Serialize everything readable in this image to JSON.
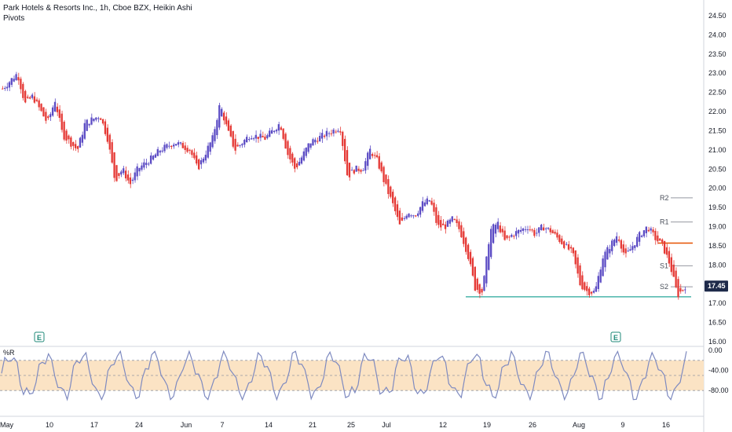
{
  "header": {
    "title": "Park Hotels & Resorts Inc., 1h, Cboe BZX, Heikin Ashi",
    "pivots_label": "Pivots",
    "indicator_label": "%R"
  },
  "price_badge": "17.45",
  "earnings_marker": "E",
  "colors": {
    "up": "#5b4bc4",
    "down": "#e53935",
    "pivot_line": "#9598a1",
    "support_line": "#26a69a",
    "resistance_line": "#e65100",
    "wr_line": "#7e8ac0",
    "wr_band": "#fbe3c4",
    "badge": "#1e2a4a"
  },
  "chart_data": [
    {
      "type": "candlestick",
      "title": "Park Hotels & Resorts Inc., 1h, Cboe BZX, Heikin Ashi",
      "y_ticks": [
        "24.50",
        "24.00",
        "23.50",
        "23.00",
        "22.50",
        "22.00",
        "21.50",
        "21.00",
        "20.50",
        "20.00",
        "19.50",
        "19.00",
        "18.50",
        "18.00",
        "17.50",
        "17.00",
        "16.50",
        "16.00"
      ],
      "ylim": [
        16.0,
        24.5
      ],
      "x_ticks": [
        "May",
        "10",
        "17",
        "24",
        "Jun",
        "7",
        "14",
        "21",
        "25",
        "Jul",
        "12",
        "19",
        "26",
        "Aug",
        "9",
        "16"
      ],
      "close_path": [
        {
          "t": 0,
          "v": 22.6
        },
        {
          "t": 2,
          "v": 23.0
        },
        {
          "t": 3,
          "v": 22.2
        },
        {
          "t": 4,
          "v": 22.4
        },
        {
          "t": 6,
          "v": 21.7
        },
        {
          "t": 7,
          "v": 22.3
        },
        {
          "t": 8,
          "v": 21.4
        },
        {
          "t": 10,
          "v": 21.0
        },
        {
          "t": 11,
          "v": 21.7
        },
        {
          "t": 13,
          "v": 21.9
        },
        {
          "t": 14,
          "v": 21.3
        },
        {
          "t": 15,
          "v": 20.2
        },
        {
          "t": 16,
          "v": 20.5
        },
        {
          "t": 17,
          "v": 20.1
        },
        {
          "t": 18,
          "v": 20.5
        },
        {
          "t": 20,
          "v": 20.8
        },
        {
          "t": 21,
          "v": 21.0
        },
        {
          "t": 23,
          "v": 21.2
        },
        {
          "t": 25,
          "v": 21.0
        },
        {
          "t": 26,
          "v": 20.5
        },
        {
          "t": 28,
          "v": 21.3
        },
        {
          "t": 29,
          "v": 22.2
        },
        {
          "t": 30,
          "v": 21.5
        },
        {
          "t": 31,
          "v": 21.0
        },
        {
          "t": 33,
          "v": 21.4
        },
        {
          "t": 35,
          "v": 21.3
        },
        {
          "t": 37,
          "v": 21.7
        },
        {
          "t": 38,
          "v": 20.9
        },
        {
          "t": 39,
          "v": 20.5
        },
        {
          "t": 41,
          "v": 21.2
        },
        {
          "t": 43,
          "v": 21.4
        },
        {
          "t": 45,
          "v": 21.6
        },
        {
          "t": 46,
          "v": 20.3
        },
        {
          "t": 47,
          "v": 20.5
        },
        {
          "t": 48,
          "v": 20.5
        },
        {
          "t": 49,
          "v": 21.0
        },
        {
          "t": 50,
          "v": 20.7
        },
        {
          "t": 51,
          "v": 20.1
        },
        {
          "t": 52,
          "v": 19.6
        },
        {
          "t": 53,
          "v": 19.0
        },
        {
          "t": 54,
          "v": 19.4
        },
        {
          "t": 55,
          "v": 19.3
        },
        {
          "t": 56,
          "v": 19.6
        },
        {
          "t": 57,
          "v": 19.7
        },
        {
          "t": 58,
          "v": 19.0
        },
        {
          "t": 59,
          "v": 19.0
        },
        {
          "t": 60,
          "v": 19.2
        },
        {
          "t": 61,
          "v": 18.9
        },
        {
          "t": 62,
          "v": 18.3
        },
        {
          "t": 63,
          "v": 17.4
        },
        {
          "t": 64,
          "v": 17.3
        },
        {
          "t": 65,
          "v": 18.9
        },
        {
          "t": 66,
          "v": 19.1
        },
        {
          "t": 67,
          "v": 18.6
        },
        {
          "t": 68,
          "v": 18.8
        },
        {
          "t": 70,
          "v": 19.0
        },
        {
          "t": 71,
          "v": 18.8
        },
        {
          "t": 72,
          "v": 19.0
        },
        {
          "t": 73,
          "v": 18.9
        },
        {
          "t": 74,
          "v": 18.7
        },
        {
          "t": 76,
          "v": 18.3
        },
        {
          "t": 77,
          "v": 17.5
        },
        {
          "t": 78,
          "v": 17.3
        },
        {
          "t": 79,
          "v": 17.3
        },
        {
          "t": 80,
          "v": 18.2
        },
        {
          "t": 82,
          "v": 18.8
        },
        {
          "t": 83,
          "v": 18.2
        },
        {
          "t": 84,
          "v": 18.5
        },
        {
          "t": 85,
          "v": 18.8
        },
        {
          "t": 86,
          "v": 19.0
        },
        {
          "t": 87,
          "v": 18.7
        },
        {
          "t": 88,
          "v": 18.5
        },
        {
          "t": 89,
          "v": 18.0
        },
        {
          "t": 90,
          "v": 17.2
        },
        {
          "t": 91,
          "v": 17.45
        }
      ],
      "pivots": [
        {
          "label": "R2",
          "value": 19.75
        },
        {
          "label": "R1",
          "value": 19.12
        },
        {
          "label": "S1",
          "value": 17.98
        },
        {
          "label": "S2",
          "value": 17.43
        }
      ],
      "horizontal_lines": [
        {
          "name": "pivot-p",
          "value": 18.57
        },
        {
          "name": "support",
          "value": 17.17
        }
      ],
      "last_price": 17.45
    },
    {
      "type": "line",
      "title": "%R",
      "y_ticks": [
        "0.00",
        "-40.00",
        "-80.00"
      ],
      "ylim": [
        -100,
        0
      ],
      "bands": [
        -20,
        -50,
        -80
      ]
    }
  ]
}
